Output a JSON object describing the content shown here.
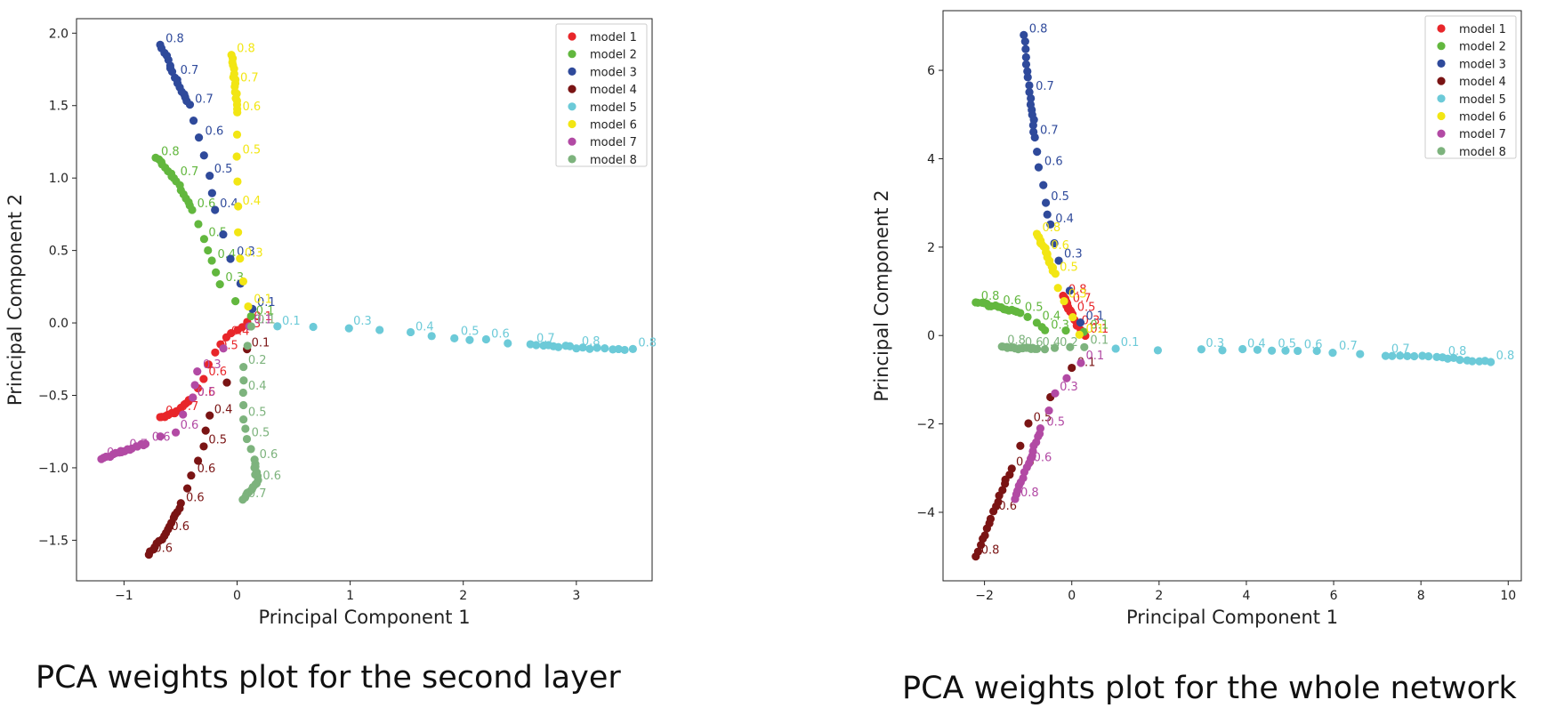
{
  "captions": {
    "left": "PCA weights plot for the second layer",
    "right": "PCA weights plot for the whole network"
  },
  "chart_data": [
    {
      "type": "scatter",
      "title": "",
      "xlabel": "Principal Component 1",
      "ylabel": "Principal Component 2",
      "xlim": [
        -1.42,
        3.67
      ],
      "ylim": [
        -1.78,
        2.1
      ],
      "xticks": [
        -1,
        0,
        1,
        2,
        3
      ],
      "yticks": [
        -1.5,
        -1.0,
        -0.5,
        0.0,
        0.5,
        1.0,
        1.5,
        2.0
      ],
      "xtick_labels": [
        "−1",
        "0",
        "1",
        "2",
        "3"
      ],
      "ytick_labels": [
        "−1.5",
        "−1.0",
        "−0.5",
        "0.0",
        "0.5",
        "1.0",
        "1.5",
        "2.0"
      ],
      "grid": false,
      "legend_position": "top-right",
      "series": [
        {
          "name": "model 1",
          "color": "#e8262a",
          "path": [
            [
              0.1,
              0.0
            ],
            [
              0.0,
              -0.05
            ],
            [
              -0.1,
              -0.1
            ],
            [
              -0.2,
              -0.2
            ],
            [
              -0.3,
              -0.38
            ],
            [
              -0.4,
              -0.52
            ],
            [
              -0.55,
              -0.62
            ],
            [
              -0.68,
              -0.65
            ]
          ],
          "labels": [
            "0.1",
            "0.3",
            "0.4",
            "0.5",
            "0.6",
            "0.6",
            "0.7",
            "0.7"
          ]
        },
        {
          "name": "model 2",
          "color": "#62b73e",
          "path": [
            [
              0.12,
              0.04
            ],
            [
              -0.15,
              0.27
            ],
            [
              -0.22,
              0.43
            ],
            [
              -0.3,
              0.58
            ],
            [
              -0.4,
              0.78
            ],
            [
              -0.55,
              1.0
            ],
            [
              -0.72,
              1.14
            ]
          ],
          "labels": [
            "0.1",
            "0.3",
            "0.4",
            "0.5",
            "0.6",
            "0.7",
            "0.8"
          ]
        },
        {
          "name": "model 3",
          "color": "#2f4a9b",
          "path": [
            [
              0.13,
              0.1
            ],
            [
              -0.05,
              0.45
            ],
            [
              -0.2,
              0.78
            ],
            [
              -0.25,
              1.02
            ],
            [
              -0.33,
              1.28
            ],
            [
              -0.42,
              1.5
            ],
            [
              -0.55,
              1.7
            ],
            [
              -0.68,
              1.92
            ]
          ],
          "labels": [
            "0.1",
            "0.3",
            "0.4",
            "0.5",
            "0.6",
            "0.7",
            "0.7",
            "0.8"
          ]
        },
        {
          "name": "model 4",
          "color": "#7a1414",
          "path": [
            [
              0.08,
              -0.18
            ],
            [
              -0.25,
              -0.64
            ],
            [
              -0.3,
              -0.85
            ],
            [
              -0.4,
              -1.05
            ],
            [
              -0.5,
              -1.25
            ],
            [
              -0.63,
              -1.45
            ],
            [
              -0.78,
              -1.6
            ]
          ],
          "labels": [
            "0.1",
            "0.4",
            "0.5",
            "0.6",
            "0.6",
            "0.6",
            "0.6"
          ]
        },
        {
          "name": "model 5",
          "color": "#6ccad8",
          "path": [
            [
              0.35,
              -0.03
            ],
            [
              0.98,
              -0.03
            ],
            [
              1.53,
              -0.07
            ],
            [
              1.93,
              -0.1
            ],
            [
              2.2,
              -0.12
            ],
            [
              2.6,
              -0.15
            ],
            [
              3.0,
              -0.17
            ],
            [
              3.5,
              -0.18
            ]
          ],
          "labels": [
            "0.1",
            "0.3",
            "0.4",
            "0.5",
            "0.6",
            "0.7",
            "0.8",
            "0.8"
          ]
        },
        {
          "name": "model 6",
          "color": "#f2e614",
          "path": [
            [
              0.1,
              0.12
            ],
            [
              0.02,
              0.44
            ],
            [
              0.0,
              0.8
            ],
            [
              0.0,
              1.15
            ],
            [
              0.0,
              1.45
            ],
            [
              -0.02,
              1.65
            ],
            [
              -0.05,
              1.85
            ]
          ],
          "labels": [
            "0.1",
            "0.3",
            "0.4",
            "0.5",
            "0.6",
            "0.7",
            "0.8"
          ]
        },
        {
          "name": "model 7",
          "color": "#b24aa4",
          "path": [
            [
              0.1,
              -0.02
            ],
            [
              -0.35,
              -0.33
            ],
            [
              -0.4,
              -0.52
            ],
            [
              -0.55,
              -0.75
            ],
            [
              -0.8,
              -0.83
            ],
            [
              -1.0,
              -0.88
            ],
            [
              -1.2,
              -0.94
            ]
          ],
          "labels": [
            "0.1",
            "0.3",
            "0.5",
            "0.6",
            "0.6",
            "0.7",
            "0.8"
          ]
        },
        {
          "name": "model 8",
          "color": "#7db37d",
          "path": [
            [
              0.13,
              -0.02
            ],
            [
              0.05,
              -0.3
            ],
            [
              0.05,
              -0.48
            ],
            [
              0.05,
              -0.66
            ],
            [
              0.08,
              -0.8
            ],
            [
              0.15,
              -0.95
            ],
            [
              0.18,
              -1.1
            ],
            [
              0.05,
              -1.22
            ]
          ],
          "labels": [
            "0.1",
            "0.2",
            "0.4",
            "0.5",
            "0.5",
            "0.6",
            "0.6",
            "0.7"
          ]
        }
      ]
    },
    {
      "type": "scatter",
      "title": "",
      "xlabel": "Principal Component 1",
      "ylabel": "Principal Component 2",
      "xlim": [
        -2.95,
        10.3
      ],
      "ylim": [
        -5.55,
        7.35
      ],
      "xticks": [
        -2,
        0,
        2,
        4,
        6,
        8,
        10
      ],
      "yticks": [
        -4,
        -2,
        0,
        2,
        4,
        6
      ],
      "xtick_labels": [
        "−2",
        "0",
        "2",
        "4",
        "6",
        "8",
        "10"
      ],
      "ytick_labels": [
        "−4",
        "−2",
        "0",
        "2",
        "4",
        "6"
      ],
      "grid": false,
      "legend_position": "top-right",
      "series": [
        {
          "name": "model 1",
          "color": "#e8262a",
          "path": [
            [
              0.3,
              0.0
            ],
            [
              0.1,
              0.2
            ],
            [
              0.0,
              0.5
            ],
            [
              -0.1,
              0.7
            ],
            [
              -0.2,
              0.9
            ]
          ],
          "labels": [
            "0.1",
            "0.3",
            "0.5",
            "0.7",
            "0.8"
          ]
        },
        {
          "name": "model 2",
          "color": "#62b73e",
          "path": [
            [
              0.3,
              0.1
            ],
            [
              -0.6,
              0.1
            ],
            [
              -0.8,
              0.3
            ],
            [
              -1.2,
              0.5
            ],
            [
              -1.7,
              0.65
            ],
            [
              -2.2,
              0.75
            ]
          ],
          "labels": [
            "0.1",
            "0.3",
            "0.4",
            "0.5",
            "0.6",
            "0.8"
          ]
        },
        {
          "name": "model 3",
          "color": "#2f4a9b",
          "path": [
            [
              0.2,
              0.3
            ],
            [
              -0.3,
              1.7
            ],
            [
              -0.5,
              2.5
            ],
            [
              -0.6,
              3.0
            ],
            [
              -0.75,
              3.8
            ],
            [
              -0.85,
              4.5
            ],
            [
              -0.95,
              5.5
            ],
            [
              -1.1,
              6.8
            ]
          ],
          "labels": [
            "0.1",
            "0.3",
            "0.4",
            "0.5",
            "0.6",
            "0.7",
            "0.7",
            "0.8"
          ]
        },
        {
          "name": "model 4",
          "color": "#7a1414",
          "path": [
            [
              0.0,
              -0.75
            ],
            [
              -1.0,
              -2.0
            ],
            [
              -1.4,
              -3.0
            ],
            [
              -1.8,
              -4.0
            ],
            [
              -2.2,
              -5.0
            ]
          ],
          "labels": [
            "0.1",
            "0.5",
            "0.6",
            "0.6",
            "0.8"
          ]
        },
        {
          "name": "model 5",
          "color": "#6ccad8",
          "path": [
            [
              1.0,
              -0.3
            ],
            [
              2.95,
              -0.32
            ],
            [
              3.9,
              -0.33
            ],
            [
              4.6,
              -0.33
            ],
            [
              5.2,
              -0.35
            ],
            [
              6.0,
              -0.38
            ],
            [
              7.2,
              -0.45
            ],
            [
              8.5,
              -0.5
            ],
            [
              9.6,
              -0.6
            ]
          ],
          "labels": [
            "0.1",
            "0.3",
            "0.4",
            "0.5",
            "0.6",
            "0.7",
            "0.7",
            "0.8",
            "0.8"
          ]
        },
        {
          "name": "model 6",
          "color": "#f2e614",
          "path": [
            [
              0.2,
              0.0
            ],
            [
              -0.2,
              0.8
            ],
            [
              -0.4,
              1.4
            ],
            [
              -0.6,
              1.9
            ],
            [
              -0.8,
              2.3
            ]
          ],
          "labels": [
            "0.1",
            "0.3",
            "0.5",
            "0.6",
            "0.8"
          ]
        },
        {
          "name": "model 7",
          "color": "#b24aa4",
          "path": [
            [
              0.2,
              -0.6
            ],
            [
              -0.4,
              -1.3
            ],
            [
              -0.7,
              -2.1
            ],
            [
              -1.0,
              -2.9
            ],
            [
              -1.3,
              -3.7
            ]
          ],
          "labels": [
            "0.1",
            "0.3",
            "0.5",
            "0.6",
            "0.8"
          ]
        },
        {
          "name": "model 8",
          "color": "#7db37d",
          "path": [
            [
              0.3,
              -0.25
            ],
            [
              -0.4,
              -0.3
            ],
            [
              -0.8,
              -0.3
            ],
            [
              -1.2,
              -0.3
            ],
            [
              -1.6,
              -0.25
            ]
          ],
          "labels": [
            "0.1",
            "0.2",
            "0.4",
            "0.6",
            "0.8"
          ]
        }
      ]
    }
  ]
}
